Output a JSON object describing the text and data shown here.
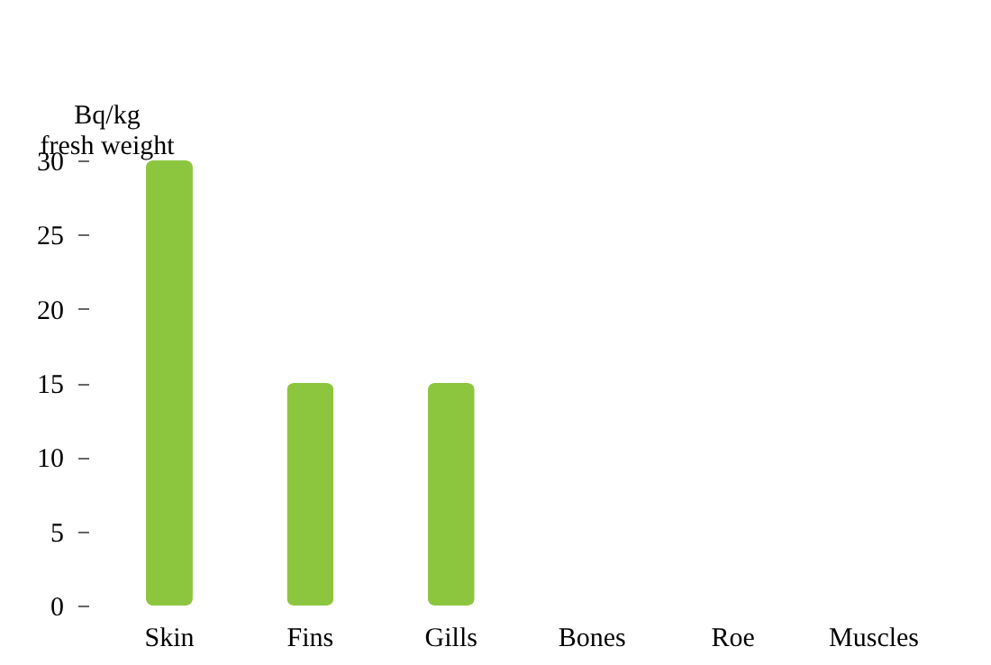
{
  "chart_data": {
    "type": "bar",
    "ylabel": "Bq/kg fresh weight",
    "categories": [
      "Skin",
      "Fins",
      "Gills",
      "Bones",
      "Roe",
      "Muscles"
    ],
    "values": [
      30,
      15,
      15,
      0,
      0,
      0
    ],
    "color": "#8cc63f",
    "ylim": [
      0,
      30
    ],
    "yticks": [
      0,
      5,
      10,
      15,
      20,
      25,
      30
    ],
    "grid": false
  }
}
